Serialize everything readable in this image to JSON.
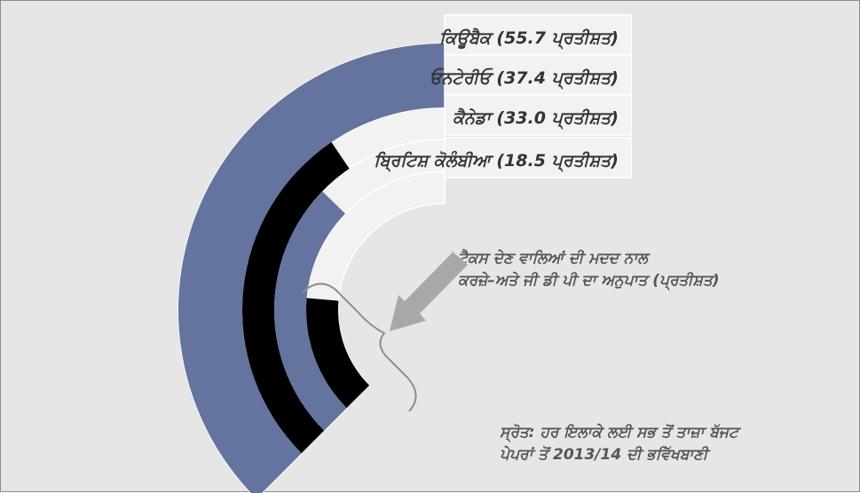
{
  "chart_data": {
    "type": "radial-bar",
    "categories": [
      "ਕਿਊਬੈਕ",
      "ਓਨਟੇਰੀਓ",
      "ਕੈਨੇਡਾ",
      "ਬ੍ਰਿਟਿਸ਼ ਕੋਲੰਬੀਆ"
    ],
    "values": [
      55.7,
      37.4,
      33.0,
      18.5
    ],
    "labels": [
      "ਕਿਊਬੈਕ (55.7 ਪ੍ਰਤੀਸ਼ਤ)",
      "ਓਨਟੇਰੀਓ (37.4 ਪ੍ਰਤੀਸ਼ਤ)",
      "ਕੈਨੇਡਾ (33.0 ਪ੍ਰਤੀਸ਼ਤ)",
      "ਬ੍ਰਿਟਿਸ਼ ਕੋਲੰਬੀਆ (18.5 ਪ੍ਰਤੀਸ਼ਤ)"
    ],
    "colors": [
      "#64749f",
      "#000000",
      "#64749f",
      "#000000"
    ],
    "background_color": "#e6e6e6",
    "annotation": {
      "line1": "ਟੈਕਸ ਦੇਣ ਵਾਲਿਆਂ ਦੀ ਮਦਦ ਨਾਲ",
      "line2": "ਕਰਜ਼ੇ–ਅਤੇ ਜੀ ਡੀ ਪੀ ਦਾ ਅਨੁਪਾਤ (ਪ੍ਰਤੀਸ਼ਤ)"
    },
    "source": {
      "line1": "ਸ੍ਰੋਤ: ਹਰ ਇਲਾਕੇ ਲਈ ਸਭ ਤੋਂ ਤਾਜ਼ਾ ਬੱਜਟ",
      "line2": "ਪੇਪਰਾਂ ਤੋਂ 2013/14 ਦੀ ਭਵਿੱਖਬਾਣੀ"
    },
    "grid": false,
    "legend": "none"
  }
}
